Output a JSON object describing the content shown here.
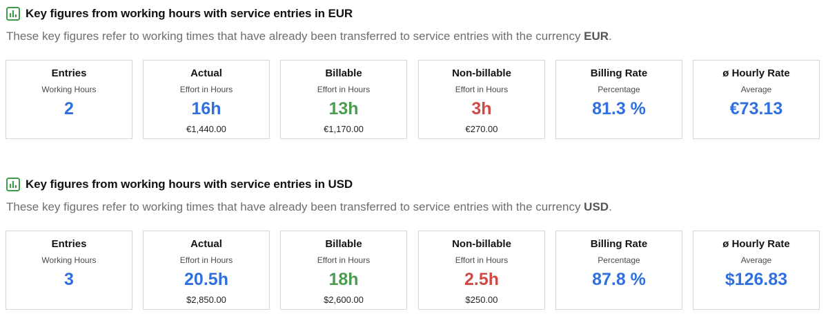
{
  "colors": {
    "blue": "#2f6fdf",
    "green": "#4a9d4f",
    "red": "#cf4a45",
    "icon_green": "#3d9a49"
  },
  "sections": [
    {
      "title": "Key figures from working hours with service entries in EUR",
      "desc_prefix": "These key figures refer to working times that have already been transferred to service entries with the currency ",
      "currency": "EUR",
      "desc_suffix": ".",
      "cards": [
        {
          "label": "Entries",
          "sub": "Working Hours",
          "value": "2",
          "amount": ""
        },
        {
          "label": "Actual",
          "sub": "Effort in Hours",
          "value": "16h",
          "amount": "€1,440.00"
        },
        {
          "label": "Billable",
          "sub": "Effort in Hours",
          "value": "13h",
          "amount": "€1,170.00"
        },
        {
          "label": "Non-billable",
          "sub": "Effort in Hours",
          "value": "3h",
          "amount": "€270.00"
        },
        {
          "label": "Billing Rate",
          "sub": "Percentage",
          "value": "81.3 %",
          "amount": ""
        },
        {
          "label": "ø Hourly Rate",
          "sub": "Average",
          "value": "€73.13",
          "amount": ""
        }
      ]
    },
    {
      "title": "Key figures from working hours with service entries in USD",
      "desc_prefix": "These key figures refer to working times that have already been transferred to service entries with the currency ",
      "currency": "USD",
      "desc_suffix": ".",
      "cards": [
        {
          "label": "Entries",
          "sub": "Working Hours",
          "value": "3",
          "amount": ""
        },
        {
          "label": "Actual",
          "sub": "Effort in Hours",
          "value": "20.5h",
          "amount": "$2,850.00"
        },
        {
          "label": "Billable",
          "sub": "Effort in Hours",
          "value": "18h",
          "amount": "$2,600.00"
        },
        {
          "label": "Non-billable",
          "sub": "Effort in Hours",
          "value": "2.5h",
          "amount": "$250.00"
        },
        {
          "label": "Billing Rate",
          "sub": "Percentage",
          "value": "87.8 %",
          "amount": ""
        },
        {
          "label": "ø Hourly Rate",
          "sub": "Average",
          "value": "$126.83",
          "amount": ""
        }
      ]
    }
  ]
}
